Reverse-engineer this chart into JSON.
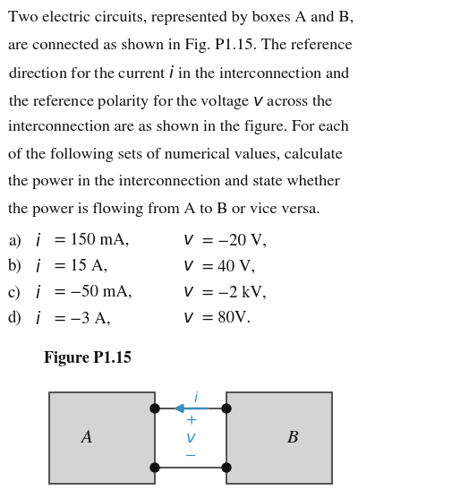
{
  "bg_color": "#ffffff",
  "box_fill": "#d4d4d4",
  "box_edge": "#444444",
  "wire_color": "#444444",
  "arrow_color": "#3a8fbf",
  "dot_color": "#111111",
  "text_color": "#111111",
  "cyan_color": "#3a8fbf",
  "paragraph_lines": [
    "Two electric circuits, represented by boxes A and B,",
    "are connected as shown in Fig. P1.15. The reference",
    "direction for the current $i$ in the interconnection and",
    "the reference polarity for the voltage $v$ across the",
    "interconnection are as shown in the figure. For each",
    "of the following sets of numerical values, calculate",
    "the power in the interconnection and state whether",
    "the power is flowing from A to B or vice versa."
  ],
  "items": [
    {
      "label": "a)",
      "i_val": "150 mA,",
      "v_val": "-20 V,"
    },
    {
      "label": "b)",
      "i_val": "15 A,",
      "v_val": "40 V,"
    },
    {
      "label": "c)",
      "i_val": "-50 mA,",
      "v_val": "-2 kV,"
    },
    {
      "label": "d)",
      "i_val": "-3 A,",
      "v_val": "80V."
    }
  ],
  "fig_label": "Figure P1.15",
  "box_A_label": "A",
  "box_B_label": "B"
}
